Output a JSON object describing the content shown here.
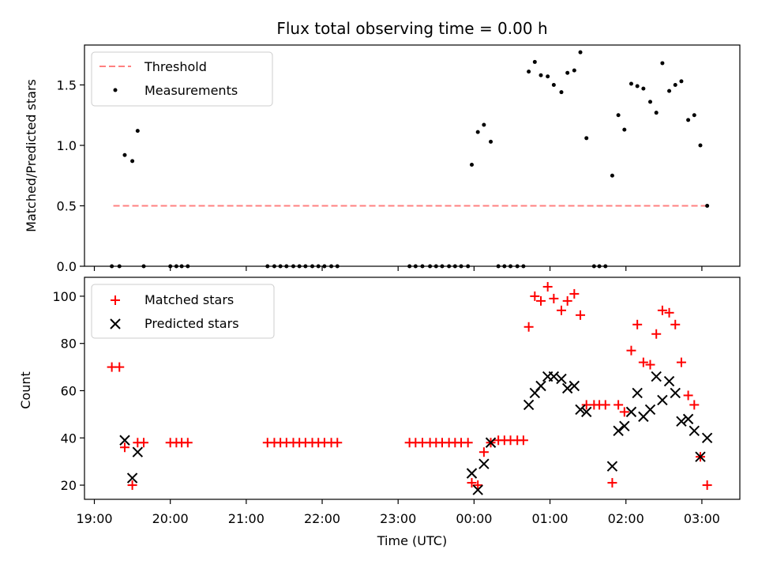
{
  "title": "Flux total observing time = 0.00 h",
  "chart_data": [
    {
      "type": "scatter",
      "panel": "top",
      "ylabel": "Matched/Predicted stars",
      "ylim": [
        0,
        1.83
      ],
      "yticks": [
        0.0,
        0.5,
        1.0,
        1.5
      ],
      "ytick_labels": [
        "0.0",
        "0.5",
        "1.0",
        "1.5"
      ],
      "legend": {
        "position": "top-left",
        "entries": [
          "Threshold",
          "Measurements"
        ]
      },
      "threshold": {
        "name": "Threshold",
        "y": 0.5,
        "x_start": 19.25,
        "x_end": 27.1,
        "color": "#ff8080"
      },
      "series": [
        {
          "name": "Measurements",
          "marker": "dot",
          "color": "#000000",
          "points": [
            [
              19.23,
              0
            ],
            [
              19.33,
              0
            ],
            [
              19.4,
              0.92
            ],
            [
              19.5,
              0.87
            ],
            [
              19.57,
              1.12
            ],
            [
              19.65,
              0
            ],
            [
              20.0,
              0
            ],
            [
              20.08,
              0
            ],
            [
              20.15,
              0
            ],
            [
              20.23,
              0
            ],
            [
              21.28,
              0
            ],
            [
              21.37,
              0
            ],
            [
              21.45,
              0
            ],
            [
              21.53,
              0
            ],
            [
              21.62,
              0
            ],
            [
              21.7,
              0
            ],
            [
              21.78,
              0
            ],
            [
              21.87,
              0
            ],
            [
              21.95,
              0
            ],
            [
              22.03,
              0
            ],
            [
              22.12,
              0
            ],
            [
              22.2,
              0
            ],
            [
              23.15,
              0
            ],
            [
              23.23,
              0
            ],
            [
              23.32,
              0
            ],
            [
              23.42,
              0
            ],
            [
              23.5,
              0
            ],
            [
              23.58,
              0
            ],
            [
              23.67,
              0
            ],
            [
              23.75,
              0
            ],
            [
              23.83,
              0
            ],
            [
              23.92,
              0
            ],
            [
              23.97,
              0.84
            ],
            [
              24.05,
              1.11
            ],
            [
              24.13,
              1.17
            ],
            [
              24.22,
              1.03
            ],
            [
              24.32,
              0
            ],
            [
              24.4,
              0
            ],
            [
              24.48,
              0
            ],
            [
              24.57,
              0
            ],
            [
              24.65,
              0
            ],
            [
              24.72,
              1.61
            ],
            [
              24.8,
              1.69
            ],
            [
              24.88,
              1.58
            ],
            [
              24.97,
              1.57
            ],
            [
              25.05,
              1.5
            ],
            [
              25.15,
              1.44
            ],
            [
              25.23,
              1.6
            ],
            [
              25.32,
              1.62
            ],
            [
              25.4,
              1.77
            ],
            [
              25.48,
              1.06
            ],
            [
              25.58,
              0
            ],
            [
              25.65,
              0
            ],
            [
              25.73,
              0
            ],
            [
              25.82,
              0.75
            ],
            [
              25.9,
              1.25
            ],
            [
              25.98,
              1.13
            ],
            [
              26.07,
              1.51
            ],
            [
              26.15,
              1.49
            ],
            [
              26.23,
              1.47
            ],
            [
              26.32,
              1.36
            ],
            [
              26.4,
              1.27
            ],
            [
              26.48,
              1.68
            ],
            [
              26.57,
              1.45
            ],
            [
              26.65,
              1.5
            ],
            [
              26.73,
              1.53
            ],
            [
              26.82,
              1.21
            ],
            [
              26.9,
              1.25
            ],
            [
              26.98,
              1.0
            ],
            [
              27.07,
              0.5
            ]
          ]
        }
      ]
    },
    {
      "type": "scatter",
      "panel": "bottom",
      "xlabel": "Time (UTC)",
      "ylabel": "Count",
      "ylim": [
        14,
        108
      ],
      "yticks": [
        20,
        40,
        60,
        80,
        100
      ],
      "ytick_labels": [
        "20",
        "40",
        "60",
        "80",
        "100"
      ],
      "xlim": [
        18.87,
        27.5
      ],
      "xticks": [
        19,
        20,
        21,
        22,
        23,
        24,
        25,
        26,
        27
      ],
      "xtick_labels": [
        "19:00",
        "20:00",
        "21:00",
        "22:00",
        "23:00",
        "00:00",
        "01:00",
        "02:00",
        "03:00"
      ],
      "legend": {
        "position": "top-left",
        "entries": [
          "Matched stars",
          "Predicted stars"
        ]
      },
      "series": [
        {
          "name": "Matched stars",
          "marker": "plus",
          "color": "#ff0000",
          "points": [
            [
              19.23,
              70
            ],
            [
              19.33,
              70
            ],
            [
              19.4,
              36
            ],
            [
              19.5,
              20
            ],
            [
              19.57,
              38
            ],
            [
              19.65,
              38
            ],
            [
              20.0,
              38
            ],
            [
              20.08,
              38
            ],
            [
              20.15,
              38
            ],
            [
              20.23,
              38
            ],
            [
              21.28,
              38
            ],
            [
              21.37,
              38
            ],
            [
              21.45,
              38
            ],
            [
              21.53,
              38
            ],
            [
              21.62,
              38
            ],
            [
              21.7,
              38
            ],
            [
              21.78,
              38
            ],
            [
              21.87,
              38
            ],
            [
              21.95,
              38
            ],
            [
              22.03,
              38
            ],
            [
              22.12,
              38
            ],
            [
              22.2,
              38
            ],
            [
              23.15,
              38
            ],
            [
              23.23,
              38
            ],
            [
              23.32,
              38
            ],
            [
              23.42,
              38
            ],
            [
              23.5,
              38
            ],
            [
              23.58,
              38
            ],
            [
              23.67,
              38
            ],
            [
              23.75,
              38
            ],
            [
              23.83,
              38
            ],
            [
              23.92,
              38
            ],
            [
              23.97,
              21
            ],
            [
              24.05,
              20
            ],
            [
              24.13,
              34
            ],
            [
              24.22,
              38
            ],
            [
              24.32,
              39
            ],
            [
              24.4,
              39
            ],
            [
              24.48,
              39
            ],
            [
              24.57,
              39
            ],
            [
              24.65,
              39
            ],
            [
              24.72,
              87
            ],
            [
              24.8,
              100
            ],
            [
              24.88,
              98
            ],
            [
              24.97,
              104
            ],
            [
              25.05,
              99
            ],
            [
              25.15,
              94
            ],
            [
              25.23,
              98
            ],
            [
              25.32,
              101
            ],
            [
              25.4,
              92
            ],
            [
              25.48,
              54
            ],
            [
              25.58,
              54
            ],
            [
              25.65,
              54
            ],
            [
              25.73,
              54
            ],
            [
              25.82,
              21
            ],
            [
              25.9,
              54
            ],
            [
              25.98,
              51
            ],
            [
              26.07,
              77
            ],
            [
              26.15,
              88
            ],
            [
              26.23,
              72
            ],
            [
              26.32,
              71
            ],
            [
              26.4,
              84
            ],
            [
              26.48,
              94
            ],
            [
              26.57,
              93
            ],
            [
              26.65,
              88
            ],
            [
              26.73,
              72
            ],
            [
              26.82,
              58
            ],
            [
              26.9,
              54
            ],
            [
              26.98,
              32
            ],
            [
              27.07,
              20
            ]
          ]
        },
        {
          "name": "Predicted stars",
          "marker": "x",
          "color": "#000000",
          "points": [
            [
              19.4,
              39
            ],
            [
              19.5,
              23
            ],
            [
              19.57,
              34
            ],
            [
              23.97,
              25
            ],
            [
              24.05,
              18
            ],
            [
              24.13,
              29
            ],
            [
              24.22,
              38
            ],
            [
              24.72,
              54
            ],
            [
              24.8,
              59
            ],
            [
              24.88,
              62
            ],
            [
              24.97,
              66
            ],
            [
              25.05,
              66
            ],
            [
              25.15,
              65
            ],
            [
              25.23,
              61
            ],
            [
              25.32,
              62
            ],
            [
              25.4,
              52
            ],
            [
              25.48,
              51
            ],
            [
              25.82,
              28
            ],
            [
              25.9,
              43
            ],
            [
              25.98,
              45
            ],
            [
              26.07,
              51
            ],
            [
              26.15,
              59
            ],
            [
              26.23,
              49
            ],
            [
              26.32,
              52
            ],
            [
              26.4,
              66
            ],
            [
              26.48,
              56
            ],
            [
              26.57,
              64
            ],
            [
              26.65,
              59
            ],
            [
              26.73,
              47
            ],
            [
              26.82,
              48
            ],
            [
              26.9,
              43
            ],
            [
              26.98,
              32
            ],
            [
              27.07,
              40
            ]
          ]
        }
      ]
    }
  ]
}
